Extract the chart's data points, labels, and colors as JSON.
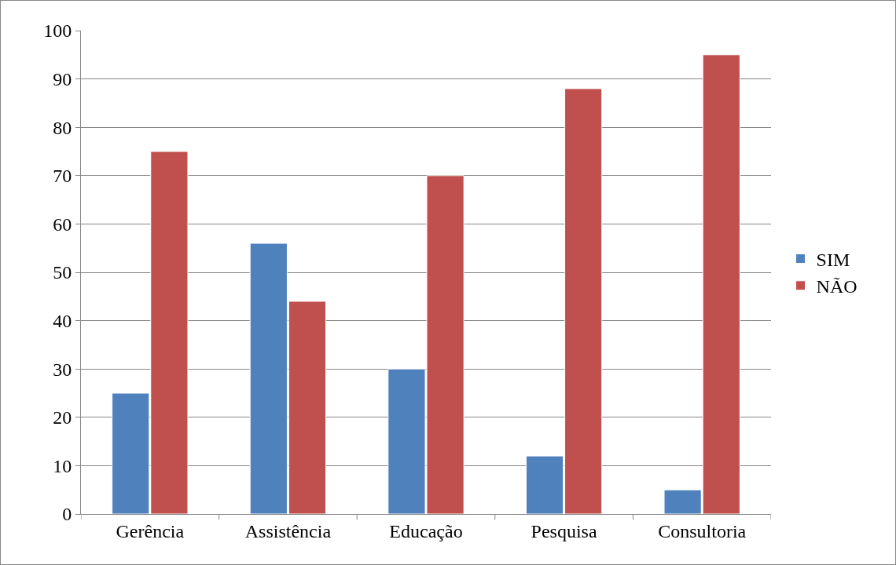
{
  "chart_data": {
    "type": "bar",
    "categories": [
      "Gerência",
      "Assistência",
      "Educação",
      "Pesquisa",
      "Consultoria"
    ],
    "series": [
      {
        "name": "SIM",
        "color": "#4f81bd",
        "values": [
          25,
          56,
          30,
          12,
          5
        ]
      },
      {
        "name": "NÃO",
        "color": "#c0504d",
        "values": [
          75,
          44,
          70,
          88,
          95
        ]
      }
    ],
    "ylim": [
      0,
      100
    ],
    "yticks": [
      0,
      10,
      20,
      30,
      40,
      50,
      60,
      70,
      80,
      90,
      100
    ],
    "grid": "y",
    "legend": "right"
  }
}
